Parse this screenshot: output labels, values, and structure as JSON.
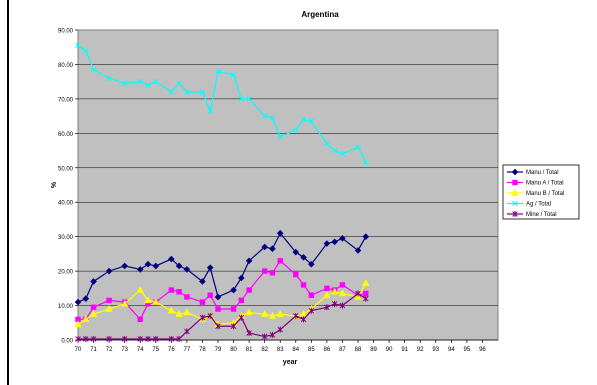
{
  "chart_data": {
    "type": "line",
    "title": "Argentina",
    "xlabel": "year",
    "ylabel": "%",
    "ylim": [
      0,
      90
    ],
    "y_ticks": [
      "0.00",
      "10.00",
      "20.00",
      "30.00",
      "40.00",
      "50.00",
      "60.00",
      "70.00",
      "80.00",
      "90.00"
    ],
    "legend_position": "right",
    "grid": "horizontal",
    "plot_background": "#c0c0c0",
    "x": [
      "70",
      "70.5",
      "71",
      "72",
      "73",
      "74",
      "74.5",
      "75",
      "76",
      "76.5",
      "77",
      "78",
      "78.5",
      "79",
      "80",
      "80.5",
      "81",
      "82",
      "82.5",
      "83",
      "84",
      "84.5",
      "85",
      "86",
      "86.5",
      "87",
      "88",
      "88.5",
      "89",
      "90",
      "91",
      "91.5",
      "92",
      "93",
      "93.5",
      "94",
      "95",
      "96",
      "96.5"
    ],
    "x_tick_labels": [
      "70",
      "71",
      "72",
      "73",
      "74",
      "75",
      "76",
      "77",
      "78",
      "79",
      "80",
      "81",
      "82",
      "83",
      "84",
      "85",
      "86",
      "87",
      "88",
      "89",
      "90",
      "91",
      "92",
      "93",
      "94",
      "95",
      "96"
    ],
    "series": [
      {
        "name": "Manu / Total",
        "color": "#000080",
        "marker": "diamond",
        "values": [
          11.0,
          12.0,
          17.0,
          20.0,
          21.5,
          20.5,
          22.0,
          21.5,
          23.5,
          21.5,
          20.5,
          17.0,
          21.0,
          12.5,
          14.5,
          18.0,
          23.0,
          27.0,
          26.5,
          31.0,
          25.5,
          24.0,
          22.0,
          28.0,
          28.5,
          29.5,
          26.0,
          30.0,
          null,
          null,
          null,
          null,
          null,
          null,
          null,
          null,
          null,
          null,
          null
        ]
      },
      {
        "name": "Manu A / Total",
        "color": "#ff00ff",
        "marker": "square",
        "values": [
          6.0,
          6.0,
          9.5,
          11.5,
          11.0,
          6.0,
          10.5,
          11.0,
          14.5,
          14.0,
          12.5,
          11.0,
          13.0,
          9.0,
          9.0,
          11.5,
          14.5,
          20.0,
          19.5,
          23.0,
          19.0,
          16.0,
          13.0,
          15.0,
          14.5,
          16.0,
          13.0,
          13.5,
          null,
          null,
          null,
          null,
          null,
          null,
          null,
          null,
          null,
          null,
          null
        ]
      },
      {
        "name": "Manu B / Total",
        "color": "#ffff00",
        "marker": "triangle",
        "values": [
          4.5,
          6.0,
          7.5,
          9.0,
          10.5,
          14.5,
          11.5,
          11.0,
          8.5,
          7.5,
          8.0,
          6.0,
          7.0,
          4.5,
          5.0,
          7.0,
          8.0,
          7.5,
          7.0,
          7.5,
          7.0,
          7.5,
          9.0,
          13.0,
          14.0,
          13.5,
          12.5,
          16.5,
          null,
          null,
          null,
          null,
          null,
          null,
          null,
          null,
          null,
          null,
          null
        ]
      },
      {
        "name": "Ag / Total",
        "color": "#00ffff",
        "marker": "x",
        "values": [
          85.5,
          84.0,
          78.5,
          76.0,
          74.5,
          75.0,
          74.0,
          75.0,
          72.0,
          74.5,
          72.0,
          72.0,
          66.5,
          78.0,
          77.0,
          70.0,
          70.0,
          65.0,
          64.5,
          59.0,
          61.0,
          64.0,
          63.5,
          57.0,
          55.0,
          54.0,
          56.0,
          51.5,
          null,
          null,
          null,
          null,
          null,
          null,
          null,
          null,
          null,
          null,
          null
        ]
      },
      {
        "name": "Mine / Total",
        "color": "#800080",
        "marker": "star",
        "values": [
          0.3,
          0.3,
          0.3,
          0.3,
          0.3,
          0.3,
          0.3,
          0.3,
          0.3,
          0.3,
          2.5,
          6.5,
          7.0,
          4.0,
          4.0,
          6.5,
          2.0,
          1.0,
          1.5,
          3.0,
          7.0,
          6.0,
          8.5,
          9.5,
          10.5,
          10.0,
          13.5,
          12.0,
          null,
          null,
          null,
          null,
          null,
          null,
          null,
          null,
          null,
          null,
          null
        ]
      }
    ]
  }
}
